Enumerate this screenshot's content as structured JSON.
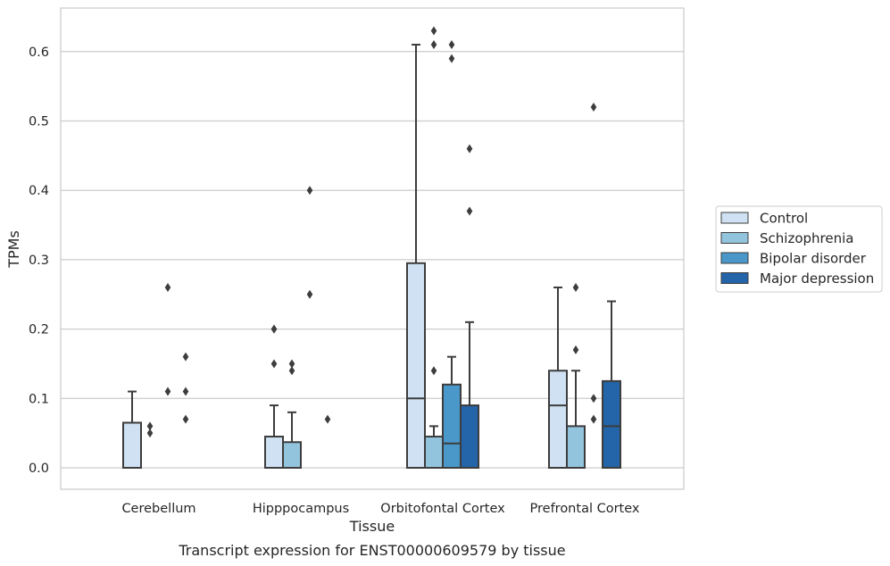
{
  "chart_data": {
    "type": "box",
    "title": "",
    "caption": "Transcript expression for ENST00000609579 by tissue",
    "xlabel": "Tissue",
    "ylabel": "TPMs",
    "ylim": [
      -0.03,
      0.66
    ],
    "yticks": [
      0.0,
      0.1,
      0.2,
      0.3,
      0.4,
      0.5,
      0.6
    ],
    "ytick_labels": [
      "0.0",
      "0.1",
      "0.2",
      "0.3",
      "0.4",
      "0.5",
      "0.6"
    ],
    "grid": "horizontal",
    "legend_placement": "right",
    "categories": [
      "Cerebellum",
      "Hipppocampus",
      "Orbitofontal Cortex",
      "Prefrontal Cortex"
    ],
    "series": [
      {
        "name": "Control",
        "color": "#cfe1f2",
        "boxes": [
          {
            "q1": 0,
            "median": 0,
            "q3": 0.065,
            "whisker_low": 0,
            "whisker_high": 0.11,
            "outliers": []
          },
          {
            "q1": 0,
            "median": 0,
            "q3": 0.045,
            "whisker_low": 0,
            "whisker_high": 0.09,
            "outliers": [
              0.15,
              0.2,
              0.2
            ]
          },
          {
            "q1": 0,
            "median": 0.1,
            "q3": 0.295,
            "whisker_low": 0,
            "whisker_high": 0.61,
            "outliers": []
          },
          {
            "q1": 0,
            "median": 0.09,
            "q3": 0.14,
            "whisker_low": 0,
            "whisker_high": 0.26,
            "outliers": []
          }
        ]
      },
      {
        "name": "Schizophrenia",
        "color": "#93c4de",
        "boxes": [
          {
            "q1": 0,
            "median": 0,
            "q3": 0,
            "whisker_low": 0,
            "whisker_high": 0,
            "outliers": [
              0.05,
              0.06
            ]
          },
          {
            "q1": 0,
            "median": 0,
            "q3": 0.037,
            "whisker_low": 0,
            "whisker_high": 0.08,
            "outliers": [
              0.14,
              0.15
            ]
          },
          {
            "q1": 0,
            "median": 0,
            "q3": 0.045,
            "whisker_low": 0,
            "whisker_high": 0.06,
            "outliers": [
              0.14,
              0.61,
              0.63
            ]
          },
          {
            "q1": 0,
            "median": 0,
            "q3": 0.06,
            "whisker_low": 0,
            "whisker_high": 0.14,
            "outliers": [
              0.17,
              0.26
            ]
          }
        ]
      },
      {
        "name": "Bipolar disorder",
        "color": "#4a98c9",
        "boxes": [
          {
            "q1": 0,
            "median": 0,
            "q3": 0,
            "whisker_low": 0,
            "whisker_high": 0,
            "outliers": [
              0.11,
              0.26
            ]
          },
          {
            "q1": 0,
            "median": 0,
            "q3": 0,
            "whisker_low": 0,
            "whisker_high": 0,
            "outliers": [
              0.25,
              0.4
            ]
          },
          {
            "q1": 0,
            "median": 0.035,
            "q3": 0.12,
            "whisker_low": 0,
            "whisker_high": 0.16,
            "outliers": [
              0.59,
              0.61
            ]
          },
          {
            "q1": 0,
            "median": 0,
            "q3": 0,
            "whisker_low": 0,
            "whisker_high": 0,
            "outliers": [
              0.07,
              0.1,
              0.52
            ]
          }
        ]
      },
      {
        "name": "Major depression",
        "color": "#2464a8",
        "boxes": [
          {
            "q1": 0,
            "median": 0,
            "q3": 0,
            "whisker_low": 0,
            "whisker_high": 0,
            "outliers": [
              0.07,
              0.11,
              0.16
            ]
          },
          {
            "q1": 0,
            "median": 0,
            "q3": 0,
            "whisker_low": 0,
            "whisker_high": 0,
            "outliers": [
              0.07
            ]
          },
          {
            "q1": 0,
            "median": 0,
            "q3": 0.09,
            "whisker_low": 0,
            "whisker_high": 0.21,
            "outliers": [
              0.37,
              0.46
            ]
          },
          {
            "q1": 0,
            "median": 0.06,
            "q3": 0.125,
            "whisker_low": 0,
            "whisker_high": 0.24,
            "outliers": []
          }
        ]
      }
    ]
  }
}
